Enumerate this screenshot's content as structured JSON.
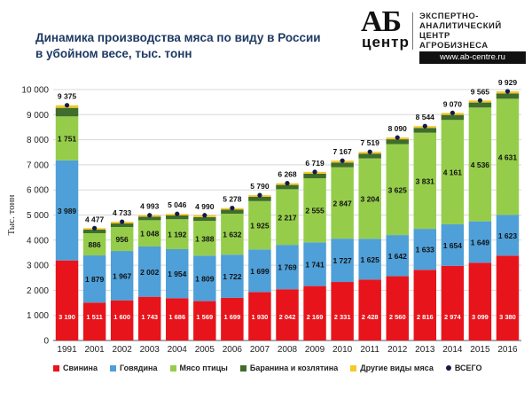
{
  "title_lines": [
    "Динамика производства мяса по виду в России",
    "в убойном весе, тыс. тонн"
  ],
  "logo": {
    "mark_top": "АБ",
    "mark_bottom": "центр",
    "text_lines": [
      "ЭКСПЕРТНО-",
      "АНАЛИТИЧЕСКИЙ",
      "ЦЕНТР",
      "АГРОБИЗНЕСА"
    ],
    "url": "www.ab-centre.ru"
  },
  "chart_data": {
    "type": "bar",
    "stacked": true,
    "title": "Динамика производства мяса по виду в России в убойном весе, тыс. тонн",
    "ylabel": "Тыс. тонн",
    "xlabel": "",
    "ylim": [
      0,
      10000
    ],
    "yticks": [
      0,
      1000,
      2000,
      3000,
      4000,
      5000,
      6000,
      7000,
      8000,
      9000,
      10000
    ],
    "ytick_labels": [
      "0",
      "1 000",
      "2 000",
      "3 000",
      "4 000",
      "5 000",
      "6 000",
      "7 000",
      "8 000",
      "9 000",
      "10 000"
    ],
    "grid": true,
    "legend_position": "bottom",
    "categories": [
      "1991",
      "2001",
      "2002",
      "2003",
      "2004",
      "2005",
      "2006",
      "2007",
      "2008",
      "2009",
      "2010",
      "2011",
      "2012",
      "2013",
      "2014",
      "2015",
      "2016"
    ],
    "series": [
      {
        "name": "Свинина",
        "color": "#e8141b",
        "values": [
          3190,
          1511,
          1600,
          1743,
          1686,
          1569,
          1699,
          1930,
          2042,
          2169,
          2331,
          2428,
          2560,
          2816,
          2974,
          3099,
          3380
        ],
        "labels": [
          "3 190",
          "1 511",
          "1 600",
          "1 743",
          "1 686",
          "1 569",
          "1 699",
          "1 930",
          "2 042",
          "2 169",
          "2 331",
          "2 428",
          "2 560",
          "2 816",
          "2 974",
          "3 099",
          "3 380"
        ]
      },
      {
        "name": "Говядина",
        "color": "#4f9fd8",
        "values": [
          3989,
          1879,
          1967,
          2002,
          1954,
          1809,
          1722,
          1699,
          1769,
          1741,
          1727,
          1625,
          1642,
          1633,
          1654,
          1649,
          1623
        ],
        "labels": [
          "3 989",
          "1 879",
          "1 967",
          "2 002",
          "1 954",
          "1 809",
          "1 722",
          "1 699",
          "1 769",
          "1 741",
          "1 727",
          "1 625",
          "1 642",
          "1 633",
          "1 654",
          "1 649",
          "1 623"
        ]
      },
      {
        "name": "Мясо птицы",
        "color": "#95cd4b",
        "values": [
          1751,
          886,
          956,
          1048,
          1192,
          1388,
          1632,
          1925,
          2217,
          2555,
          2847,
          3204,
          3625,
          3831,
          4161,
          4536,
          4631
        ],
        "labels": [
          "1 751",
          "886",
          "956",
          "1 048",
          "1 192",
          "1 388",
          "1 632",
          "1 925",
          "2 217",
          "2 555",
          "2 847",
          "3 204",
          "3 625",
          "3 831",
          "4 161",
          "4 536",
          "4 631"
        ]
      },
      {
        "name": "Баранина и козлятина",
        "color": "#3f6d2c",
        "values": [
          340,
          140,
          140,
          140,
          150,
          150,
          165,
          170,
          170,
          180,
          185,
          190,
          190,
          190,
          200,
          200,
          210
        ]
      },
      {
        "name": "Другие виды мяса",
        "color": "#f3c92b",
        "values": [
          105,
          61,
          70,
          60,
          64,
          74,
          60,
          66,
          70,
          74,
          77,
          72,
          73,
          74,
          81,
          81,
          85
        ]
      }
    ],
    "totals": {
      "name": "ВСЕГО",
      "color": "#141a4a",
      "values": [
        9375,
        4477,
        4733,
        4993,
        5046,
        4990,
        5278,
        5790,
        6268,
        6719,
        7167,
        7519,
        8090,
        8544,
        9070,
        9565,
        9929
      ],
      "labels": [
        "9 375",
        "4 477",
        "4 733",
        "4 993",
        "5 046",
        "4 990",
        "5 278",
        "5 790",
        "6 268",
        "6 719",
        "7 167",
        "7 519",
        "8 090",
        "8 544",
        "9 070",
        "9 565",
        "9 929"
      ]
    }
  }
}
